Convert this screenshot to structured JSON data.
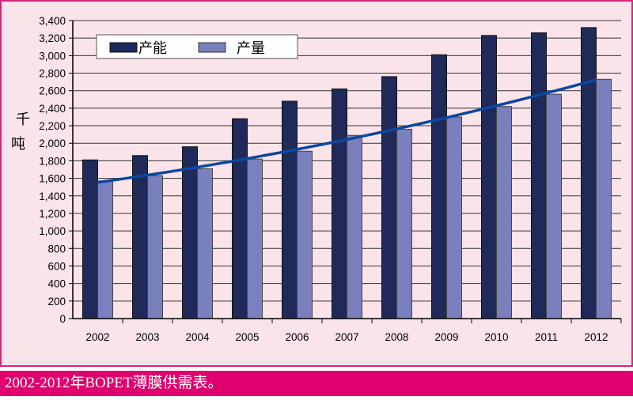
{
  "caption": "2002-2012年BOPET薄膜供需表。",
  "chart_data": {
    "type": "bar",
    "title": "",
    "xlabel": "",
    "ylabel": "千吨",
    "ylabel_chars": [
      "千",
      "吨"
    ],
    "ylim": [
      0,
      3400
    ],
    "ytick_step": 200,
    "yticks": [
      "0",
      "200",
      "400",
      "600",
      "800",
      "1,000",
      "1,200",
      "1,400",
      "1,600",
      "1,800",
      "2,000",
      "2,200",
      "2,400",
      "2,600",
      "2,800",
      "3,000",
      "3,200",
      "3,400"
    ],
    "categories": [
      "2002",
      "2003",
      "2004",
      "2005",
      "2006",
      "2007",
      "2008",
      "2009",
      "2010",
      "2011",
      "2012"
    ],
    "grid": true,
    "legend_placement": "top-left",
    "series": [
      {
        "name": "产能",
        "color": "#1f2a5a",
        "values": [
          1810,
          1860,
          1960,
          2280,
          2480,
          2620,
          2760,
          3010,
          3230,
          3260,
          3320
        ]
      },
      {
        "name": "产量",
        "color": "#7a80bd",
        "values": [
          1570,
          1630,
          1710,
          1820,
          1910,
          2090,
          2160,
          2300,
          2420,
          2560,
          2730
        ]
      }
    ],
    "trendline": {
      "series": "产量",
      "color": "#0a47a0"
    }
  }
}
